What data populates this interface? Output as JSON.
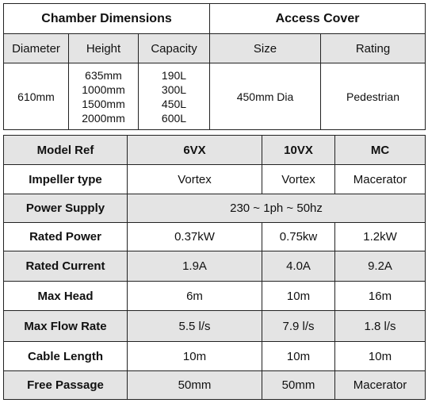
{
  "dimensions": {
    "chamber_title": "Chamber Dimensions",
    "access_title": "Access Cover",
    "columns": [
      "Diameter",
      "Height",
      "Capacity",
      "Size",
      "Rating"
    ],
    "diameter": "610mm",
    "heights": [
      "635mm",
      "1000mm",
      "1500mm",
      "2000mm"
    ],
    "capacities": [
      "190L",
      "300L",
      "450L",
      "600L"
    ],
    "size": "450mm Dia",
    "rating": "Pedestrian"
  },
  "specs": {
    "header": [
      "Model Ref",
      "6VX",
      "10VX",
      "MC"
    ],
    "rows": [
      {
        "label": "Impeller type",
        "values": [
          "Vortex",
          "Vortex",
          "Macerator"
        ]
      },
      {
        "label": "Power Supply",
        "merged": "230 ~ 1ph ~ 50hz"
      },
      {
        "label": "Rated Power",
        "values": [
          "0.37kW",
          "0.75kw",
          "1.2kW"
        ]
      },
      {
        "label": "Rated Current",
        "values": [
          "1.9A",
          "4.0A",
          "9.2A"
        ]
      },
      {
        "label": "Max Head",
        "values": [
          "6m",
          "10m",
          "16m"
        ]
      },
      {
        "label": "Max Flow Rate",
        "values": [
          "5.5 l/s",
          "7.9 l/s",
          "1.8 l/s"
        ]
      },
      {
        "label": "Cable Length",
        "values": [
          "10m",
          "10m",
          "10m"
        ]
      },
      {
        "label": "Free Passage",
        "values": [
          "50mm",
          "50mm",
          "Macerator"
        ]
      }
    ]
  }
}
